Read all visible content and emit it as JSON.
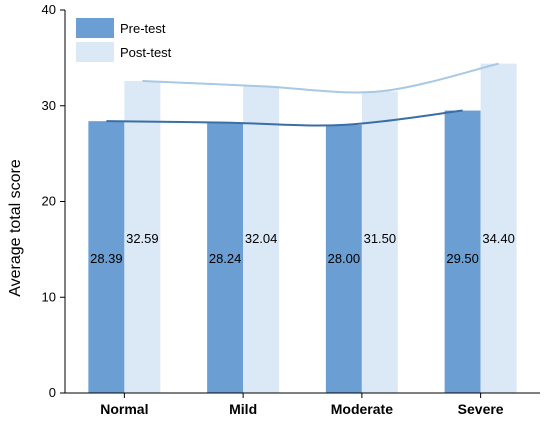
{
  "chart_data": {
    "type": "bar",
    "categories": [
      "Normal",
      "Mild",
      "Moderate",
      "Severe"
    ],
    "series": [
      {
        "name": "Pre-test",
        "values": [
          28.39,
          28.24,
          28.0,
          29.5
        ],
        "color": "#6b9fd4"
      },
      {
        "name": "Post-test",
        "values": [
          32.59,
          32.04,
          31.5,
          34.4
        ],
        "color": "#dbe9f7"
      }
    ],
    "data_labels": {
      "Pre-test": [
        "28.39",
        "28.24",
        "28.00",
        "29.50"
      ],
      "Post-test": [
        "32.59",
        "32.04",
        "31.50",
        "34.40"
      ]
    },
    "trend_lines": [
      {
        "series": "Pre-test",
        "color": "#3a6ea5"
      },
      {
        "series": "Post-test",
        "color": "#a9c8e4"
      }
    ],
    "ylabel": "Average total score",
    "xlabel": "",
    "ylim": [
      0,
      40
    ],
    "yticks": [
      0,
      10,
      20,
      30,
      40
    ],
    "grid": false,
    "legend": "top-left"
  }
}
